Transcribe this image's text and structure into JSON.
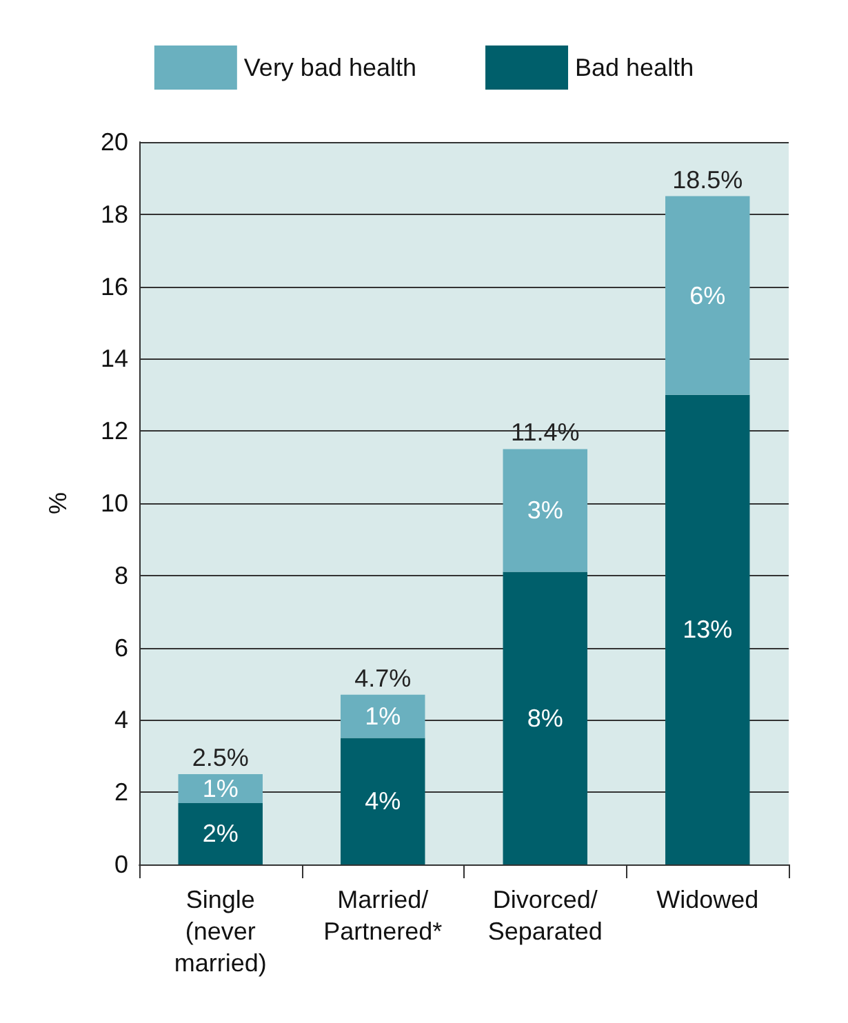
{
  "chart_data": {
    "type": "bar",
    "stacked": true,
    "ylabel": "%",
    "categories": [
      "Single\n(never\nmarried)",
      "Married/\nPartnered*",
      "Divorced/\nSeparated",
      "Widowed"
    ],
    "series": [
      {
        "name": "Bad health",
        "color": "#005f6b",
        "values": [
          1.7,
          3.5,
          8.1,
          13.0
        ],
        "value_labels": [
          "2%",
          "4%",
          "8%",
          "13%"
        ]
      },
      {
        "name": "Very bad health",
        "color": "#6ab0bf",
        "values": [
          0.8,
          1.2,
          3.4,
          5.5
        ],
        "value_labels": [
          "1%",
          "1%",
          "3%",
          "6%"
        ]
      }
    ],
    "totals": [
      "2.5%",
      "4.7%",
      "11.4%",
      "18.5%"
    ],
    "ylim": [
      0,
      20
    ],
    "yticks": [
      0,
      2,
      4,
      6,
      8,
      10,
      12,
      14,
      16,
      18,
      20
    ],
    "grid": "y",
    "legend": "top"
  }
}
